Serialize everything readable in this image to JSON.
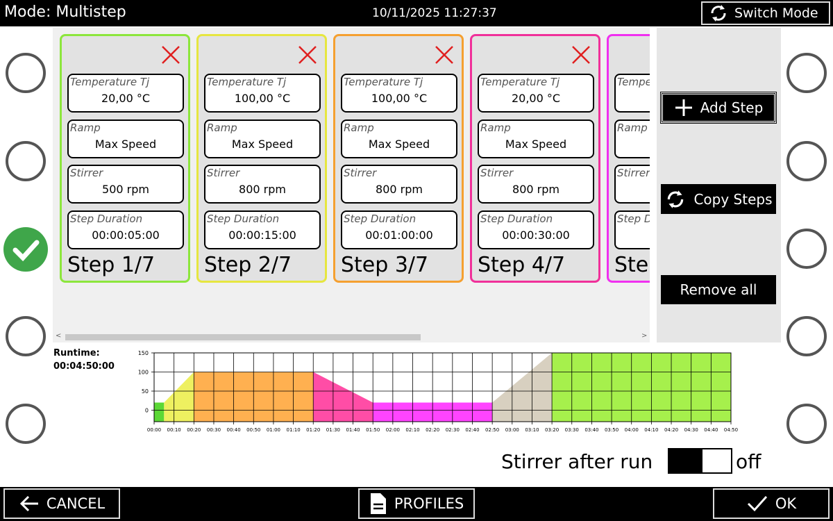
{
  "header": {
    "mode": "Mode: Multistep",
    "datetime": "10/11/2025 11:27:37",
    "switch_mode": "Switch Mode"
  },
  "steps": [
    {
      "color": "#8ce63c",
      "title": "Step 1/7",
      "fields": [
        {
          "label": "Temperature Tj",
          "value": "20,00 °C"
        },
        {
          "label": "Ramp",
          "value": "Max Speed"
        },
        {
          "label": "Stirrer",
          "value": "500 rpm"
        },
        {
          "label": "Step Duration",
          "value": "00:00:05:00"
        }
      ]
    },
    {
      "color": "#e6e640",
      "title": "Step 2/7",
      "fields": [
        {
          "label": "Temperature Tj",
          "value": "100,00 °C"
        },
        {
          "label": "Ramp",
          "value": "Max Speed"
        },
        {
          "label": "Stirrer",
          "value": "800 rpm"
        },
        {
          "label": "Step Duration",
          "value": "00:00:15:00"
        }
      ]
    },
    {
      "color": "#f5a030",
      "title": "Step 3/7",
      "fields": [
        {
          "label": "Temperature Tj",
          "value": "100,00 °C"
        },
        {
          "label": "Ramp",
          "value": "Max Speed"
        },
        {
          "label": "Stirrer",
          "value": "800 rpm"
        },
        {
          "label": "Step Duration",
          "value": "00:01:00:00"
        }
      ]
    },
    {
      "color": "#f0309a",
      "title": "Step 4/7",
      "fields": [
        {
          "label": "Temperature Tj",
          "value": "20,00 °C"
        },
        {
          "label": "Ramp",
          "value": "Max Speed"
        },
        {
          "label": "Stirrer",
          "value": "800 rpm"
        },
        {
          "label": "Step Duration",
          "value": "00:00:30:00"
        }
      ]
    },
    {
      "color": "#f030f0",
      "title": "Ste",
      "fields": [
        {
          "label": "Tempe"
        },
        {
          "label": "Ramp",
          "value": "M"
        },
        {
          "label": "Stirrer"
        },
        {
          "label": "Step D",
          "value": "0"
        }
      ]
    }
  ],
  "buttons": {
    "add_step": "Add Step",
    "copy_steps": "Copy Steps",
    "remove_all": "Remove all"
  },
  "runtime": {
    "label": "Runtime:",
    "value": "00:04:50:00"
  },
  "chart_data": {
    "type": "area",
    "xlim": [
      0,
      290
    ],
    "ylim": [
      -30,
      150
    ],
    "yticks": [
      0,
      50,
      100,
      150
    ],
    "xticks": [
      {
        "value": 0,
        "label": "00:00"
      },
      {
        "value": 10,
        "label": "00:10"
      },
      {
        "value": 20,
        "label": "00:20"
      },
      {
        "value": 30,
        "label": "00:30"
      },
      {
        "value": 40,
        "label": "00:40"
      },
      {
        "value": 50,
        "label": "00:50"
      },
      {
        "value": 60,
        "label": "01:00"
      },
      {
        "value": 70,
        "label": "01:10"
      },
      {
        "value": 80,
        "label": "01:20"
      },
      {
        "value": 90,
        "label": "01:30"
      },
      {
        "value": 100,
        "label": "01:40"
      },
      {
        "value": 110,
        "label": "01:50"
      },
      {
        "value": 120,
        "label": "02:00"
      },
      {
        "value": 130,
        "label": "02:10"
      },
      {
        "value": 140,
        "label": "02:20"
      },
      {
        "value": 150,
        "label": "02:30"
      },
      {
        "value": 160,
        "label": "02:40"
      },
      {
        "value": 170,
        "label": "02:50"
      },
      {
        "value": 180,
        "label": "03:00"
      },
      {
        "value": 190,
        "label": "03:10"
      },
      {
        "value": 200,
        "label": "03:20"
      },
      {
        "value": 210,
        "label": "03:30"
      },
      {
        "value": 220,
        "label": "03:40"
      },
      {
        "value": 230,
        "label": "03:50"
      },
      {
        "value": 240,
        "label": "04:00"
      },
      {
        "value": 250,
        "label": "04:10"
      },
      {
        "value": 260,
        "label": "04:20"
      },
      {
        "value": 270,
        "label": "04:30"
      },
      {
        "value": 280,
        "label": "04:40"
      },
      {
        "value": 290,
        "label": "04:50"
      }
    ],
    "grid": true,
    "series": [
      {
        "color": "#5cd836",
        "x": [
          0,
          5
        ],
        "values": [
          20,
          20
        ]
      },
      {
        "color": "#eef060",
        "x": [
          5,
          20
        ],
        "values": [
          20,
          100
        ]
      },
      {
        "color": "#ffb050",
        "x": [
          20,
          80
        ],
        "values": [
          100,
          100
        ]
      },
      {
        "color": "#ff4da6",
        "x": [
          80,
          110
        ],
        "values": [
          100,
          20
        ]
      },
      {
        "color": "#ff44ff",
        "x": [
          110,
          170
        ],
        "values": [
          20,
          20
        ]
      },
      {
        "color": "#d8d0c0",
        "x": [
          170,
          200
        ],
        "values": [
          20,
          150
        ]
      },
      {
        "color": "#a6f04c",
        "x": [
          200,
          290
        ],
        "values": [
          150,
          150
        ]
      }
    ]
  },
  "stirrer": {
    "label": "Stirrer after run",
    "state": "off"
  },
  "footer": {
    "cancel": "CANCEL",
    "profiles": "PROFILES",
    "ok": "OK"
  }
}
